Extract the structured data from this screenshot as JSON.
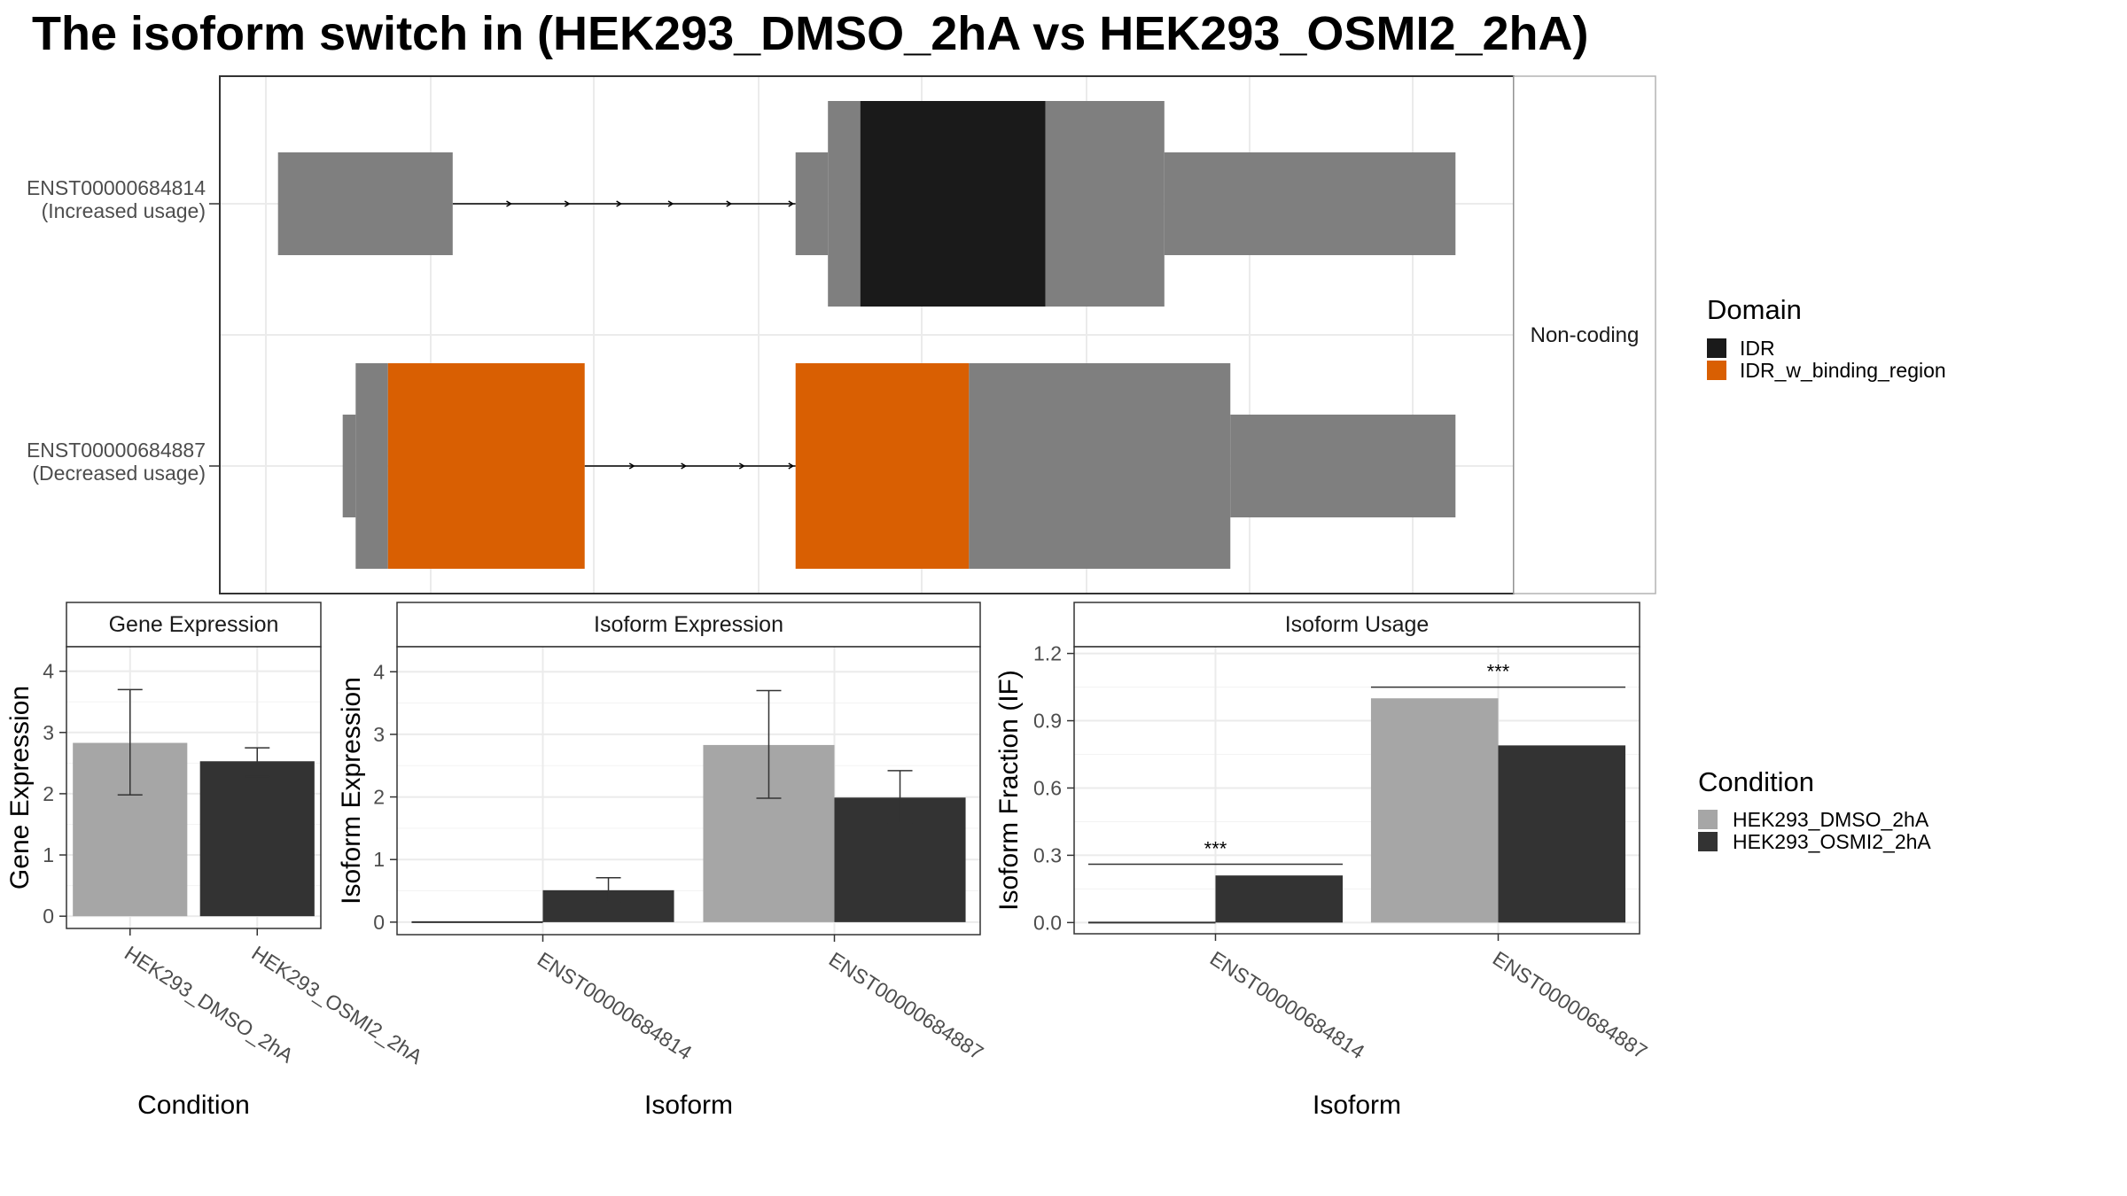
{
  "title": "The isoform switch in  (HEK293_DMSO_2hA vs HEK293_OSMI2_2hA)",
  "colors": {
    "utr": "#7f7f7f",
    "IDR": "#1a1a1a",
    "IDR_w_binding_region": "#d95f02",
    "HEK293_DMSO_2hA": "#a6a6a6",
    "HEK293_OSMI2_2hA": "#333333",
    "grid": "#ebebeb",
    "panel_border": "#333333"
  },
  "chart_data": [
    {
      "type": "gene-structure",
      "panel": "isoforms",
      "strip_label": "Non-coding",
      "x_range": [
        0,
        100
      ],
      "isoforms": [
        {
          "id": "ENST00000684814",
          "label": [
            "ENST00000684814",
            "(Increased usage)"
          ],
          "segments": [
            {
              "start": 4.5,
              "end": 18.0,
              "kind": "utr"
            },
            {
              "start": 44.5,
              "end": 47.0,
              "kind": "utr"
            },
            {
              "start": 47.0,
              "end": 49.5,
              "kind": "cds"
            },
            {
              "start": 49.5,
              "end": 63.8,
              "kind": "domain",
              "domain": "IDR"
            },
            {
              "start": 63.8,
              "end": 73.0,
              "kind": "cds"
            },
            {
              "start": 73.0,
              "end": 95.5,
              "kind": "utr"
            }
          ],
          "intron": {
            "start": 18.0,
            "end": 44.5
          },
          "arrow_positions": [
            22.5,
            27.0,
            31.0,
            35.0,
            39.5,
            44.3
          ]
        },
        {
          "id": "ENST00000684887",
          "label": [
            "ENST00000684887",
            "(Decreased usage)"
          ],
          "segments": [
            {
              "start": 9.5,
              "end": 10.5,
              "kind": "utr"
            },
            {
              "start": 10.5,
              "end": 13.0,
              "kind": "cds"
            },
            {
              "start": 13.0,
              "end": 28.2,
              "kind": "domain",
              "domain": "IDR_w_binding_region"
            },
            {
              "start": 44.5,
              "end": 57.9,
              "kind": "domain",
              "domain": "IDR_w_binding_region"
            },
            {
              "start": 57.9,
              "end": 78.1,
              "kind": "cds"
            },
            {
              "start": 78.1,
              "end": 95.5,
              "kind": "utr"
            }
          ],
          "intron": {
            "start": 28.2,
            "end": 44.5
          },
          "arrow_positions": [
            32.0,
            36.0,
            40.5,
            44.3
          ]
        }
      ]
    },
    {
      "type": "bar",
      "panel": "gene-expression",
      "title": "Gene Expression",
      "xlabel": "Condition",
      "ylabel": "Gene Expression",
      "ylim": [
        -0.2,
        4.4
      ],
      "yticks": [
        0,
        1,
        2,
        3,
        4
      ],
      "categories": [
        "HEK293_DMSO_2hA",
        "HEK293_OSMI2_2hA"
      ],
      "values": [
        2.83,
        2.53
      ],
      "error_low": [
        1.98,
        2.28
      ],
      "error_high": [
        3.7,
        2.75
      ]
    },
    {
      "type": "bar",
      "panel": "isoform-expression",
      "title": "Isoform Expression",
      "xlabel": "Isoform",
      "ylabel": "Isoform Expression",
      "ylim": [
        -0.2,
        4.4
      ],
      "yticks": [
        0,
        1,
        2,
        3,
        4
      ],
      "categories": [
        "ENST00000684814",
        "ENST00000684887"
      ],
      "series": [
        {
          "name": "HEK293_DMSO_2hA",
          "values": [
            0.0,
            2.83
          ],
          "error_low": [
            0.0,
            1.98
          ],
          "error_high": [
            0.0,
            3.7
          ]
        },
        {
          "name": "HEK293_OSMI2_2hA",
          "values": [
            0.51,
            1.99
          ],
          "error_low": [
            0.32,
            1.58
          ],
          "error_high": [
            0.71,
            2.42
          ]
        }
      ]
    },
    {
      "type": "bar",
      "panel": "isoform-usage",
      "title": "Isoform Usage",
      "xlabel": "Isoform",
      "ylabel": "Isoform Fraction (IF)",
      "ylim": [
        -0.05,
        1.23
      ],
      "yticks": [
        "0.0",
        "0.3",
        "0.6",
        "0.9",
        "1.2"
      ],
      "categories": [
        "ENST00000684814",
        "ENST00000684887"
      ],
      "series": [
        {
          "name": "HEK293_DMSO_2hA",
          "values": [
            0.0,
            1.0
          ]
        },
        {
          "name": "HEK293_OSMI2_2hA",
          "values": [
            0.21,
            0.79
          ]
        }
      ],
      "significance": [
        {
          "category": "ENST00000684814",
          "label": "***",
          "y": 0.26
        },
        {
          "category": "ENST00000684887",
          "label": "***",
          "y": 1.05
        }
      ]
    }
  ],
  "legends": {
    "domain": {
      "title": "Domain",
      "items": [
        "IDR",
        "IDR_w_binding_region"
      ]
    },
    "condition": {
      "title": "Condition",
      "items": [
        "HEK293_DMSO_2hA",
        "HEK293_OSMI2_2hA"
      ]
    }
  }
}
